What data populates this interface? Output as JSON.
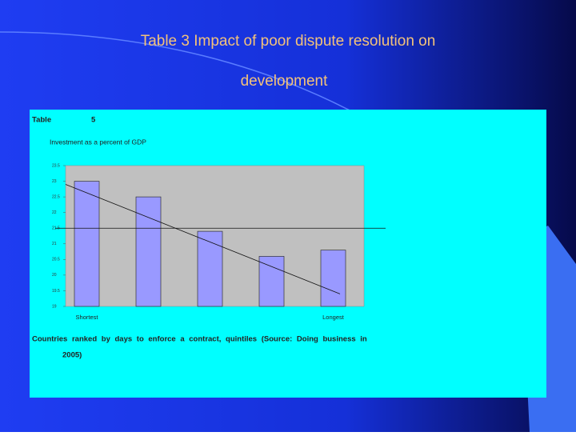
{
  "slide": {
    "title_lines": [
      "Table 3  Impact of poor dispute resolution on",
      "development"
    ]
  },
  "chart_data": {
    "type": "bar",
    "table_label": "Table",
    "table_number": "5",
    "title": "Investment as a percent of GDP",
    "categories": [
      "Shortest",
      null,
      null,
      null,
      "Longest"
    ],
    "values": [
      23.0,
      22.5,
      21.4,
      20.6,
      20.8
    ],
    "color": "#9999ff",
    "ylim": [
      19,
      23.5
    ],
    "yticks": [
      19,
      19.5,
      20,
      20.5,
      21,
      21.5,
      22,
      22.5,
      23,
      23.5
    ],
    "average_line": 21.5,
    "trend_line": [
      22.9,
      19.4
    ],
    "caption_lines": [
      "Countries ranked by days to enforce a contract, quintiles (Source: Doing business in",
      "2005)"
    ]
  }
}
